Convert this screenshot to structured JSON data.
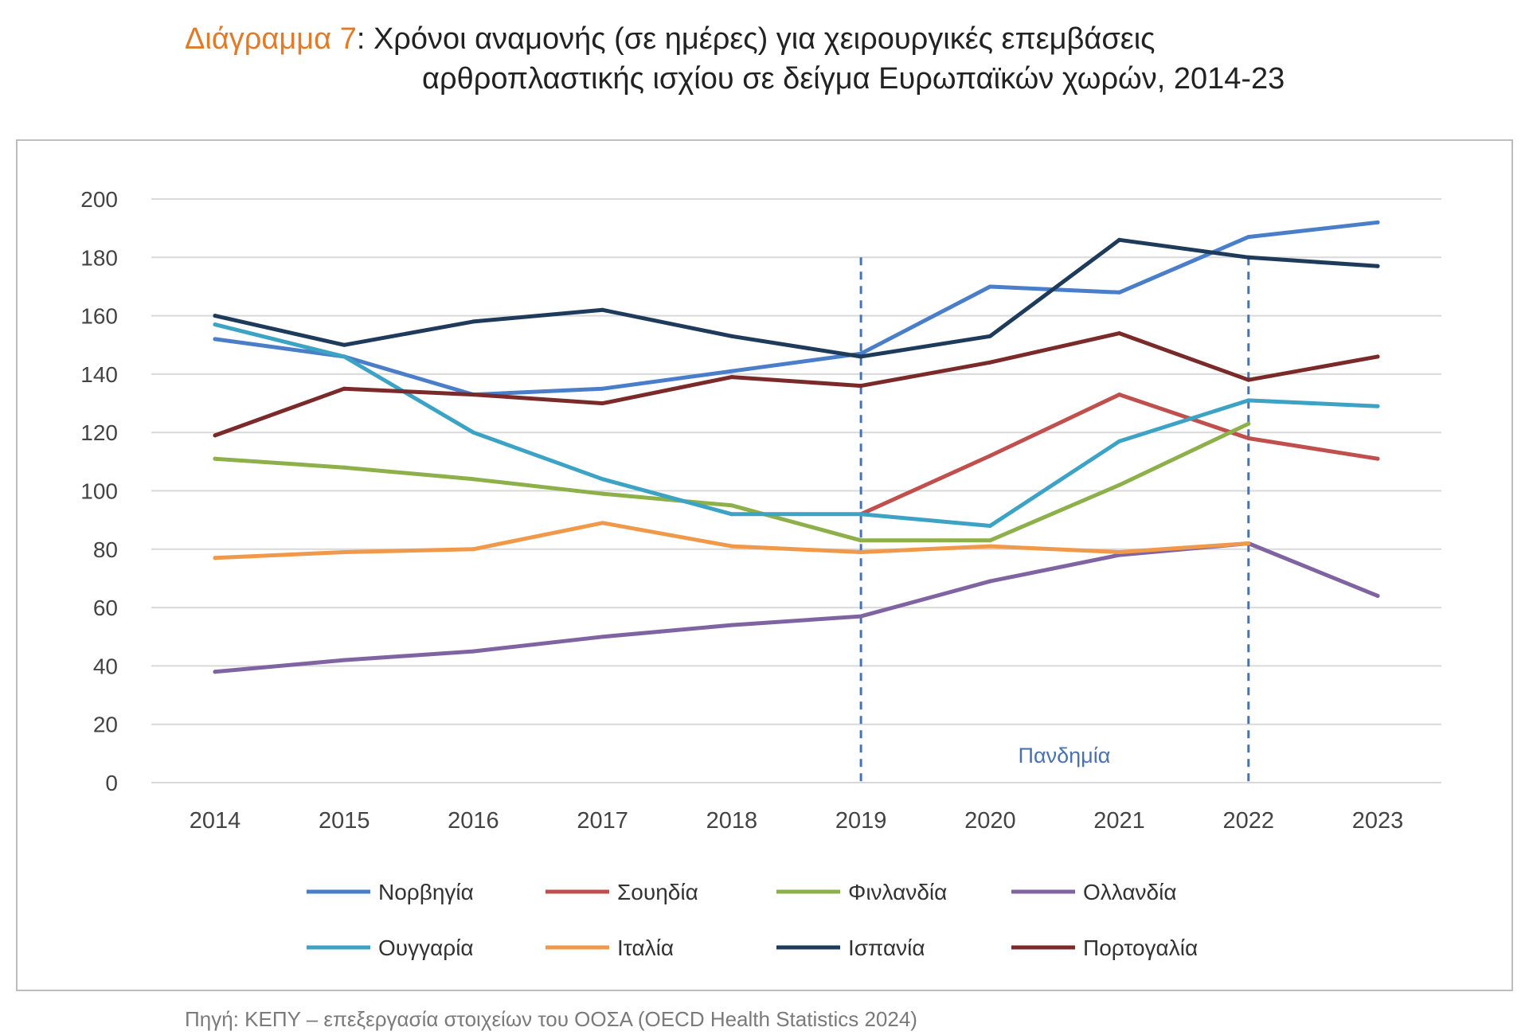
{
  "title": {
    "prefix": "Διάγραμμα 7",
    "line1_rest": ": Χρόνοι αναμονής (σε ημέρες) για χειρουργικές επεμβάσεις",
    "line2": "αρθροπλαστικής ισχίου σε δείγμα Ευρωπαϊκών χωρών, 2014-23",
    "prefix_color": "#e07b2a"
  },
  "source": "Πηγή: ΚΕΠΥ – επεξεργασία στοιχείων του ΟΟΣΑ (OECD Health Statistics 2024)",
  "chart_data": {
    "type": "line",
    "x": [
      "2014",
      "2015",
      "2016",
      "2017",
      "2018",
      "2019",
      "2020",
      "2021",
      "2022",
      "2023"
    ],
    "ylim": [
      0,
      200
    ],
    "yticks": [
      "0",
      "20",
      "40",
      "60",
      "80",
      "100",
      "120",
      "140",
      "160",
      "180",
      "200"
    ],
    "grid": true,
    "legend_placement": "bottom",
    "annotation": {
      "label": "Πανδημία",
      "from": "2019",
      "to": "2022",
      "color": "#4a72b0"
    },
    "series": [
      {
        "name": "Νορβηγία",
        "color": "#4a7ec8",
        "values": [
          152,
          146,
          133,
          135,
          141,
          147,
          170,
          168,
          187,
          192
        ]
      },
      {
        "name": "Σουηδία",
        "color": "#c0504d",
        "values": [
          null,
          null,
          null,
          null,
          null,
          92,
          112,
          133,
          118,
          111
        ]
      },
      {
        "name": "Φινλανδία",
        "color": "#8db04a",
        "values": [
          111,
          108,
          104,
          99,
          95,
          83,
          83,
          102,
          123,
          null
        ]
      },
      {
        "name": "Ολλανδία",
        "color": "#8064a2",
        "values": [
          38,
          42,
          45,
          50,
          54,
          57,
          69,
          78,
          82,
          64
        ]
      },
      {
        "name": "Ουγγαρία",
        "color": "#3da3c4",
        "values": [
          157,
          146,
          120,
          104,
          92,
          92,
          88,
          117,
          131,
          129
        ]
      },
      {
        "name": "Ιταλία",
        "color": "#f0994a",
        "values": [
          77,
          79,
          80,
          89,
          81,
          79,
          81,
          79,
          82,
          null
        ]
      },
      {
        "name": "Ισπανία",
        "color": "#1f3b5c",
        "values": [
          160,
          150,
          158,
          162,
          153,
          146,
          153,
          186,
          180,
          177
        ]
      },
      {
        "name": "Πορτογαλία",
        "color": "#7b2a2a",
        "values": [
          119,
          135,
          133,
          130,
          139,
          136,
          144,
          154,
          138,
          146
        ]
      }
    ]
  }
}
